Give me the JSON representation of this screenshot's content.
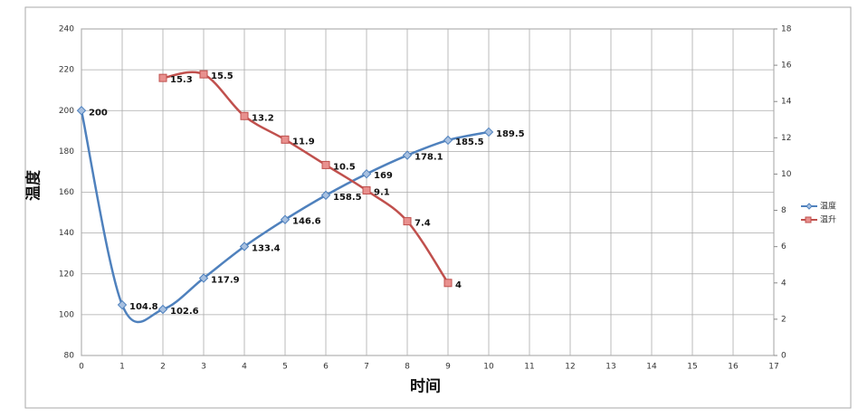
{
  "chart_data": {
    "type": "line",
    "xlabel": "时间",
    "ylabel": "温度",
    "xlim": [
      0,
      17
    ],
    "xticks": [
      0,
      1,
      2,
      3,
      4,
      5,
      6,
      7,
      8,
      9,
      10,
      11,
      12,
      13,
      14,
      15,
      16,
      17
    ],
    "ylim": [
      80,
      240
    ],
    "yticks": [
      80,
      100,
      120,
      140,
      160,
      180,
      200,
      220,
      240
    ],
    "y2lim": [
      0,
      18
    ],
    "y2ticks": [
      0,
      2,
      4,
      6,
      8,
      10,
      12,
      14,
      16,
      18
    ],
    "grid": true,
    "legend": "right",
    "series": [
      {
        "name": "温度",
        "color": "#4f81bd",
        "x": [
          0,
          1,
          2,
          3,
          4,
          5,
          6,
          7,
          8,
          9,
          10
        ],
        "values": [
          200,
          104.8,
          102.6,
          117.9,
          133.4,
          146.6,
          158.5,
          169,
          178.1,
          185.5,
          189.5
        ]
      },
      {
        "name": "温升",
        "color": "#c0504d",
        "axis": "y2",
        "x": [
          2,
          3,
          4,
          5,
          6,
          7,
          8,
          9
        ],
        "values": [
          15.3,
          15.5,
          13.2,
          11.9,
          10.5,
          9.1,
          7.4,
          4
        ]
      }
    ]
  }
}
